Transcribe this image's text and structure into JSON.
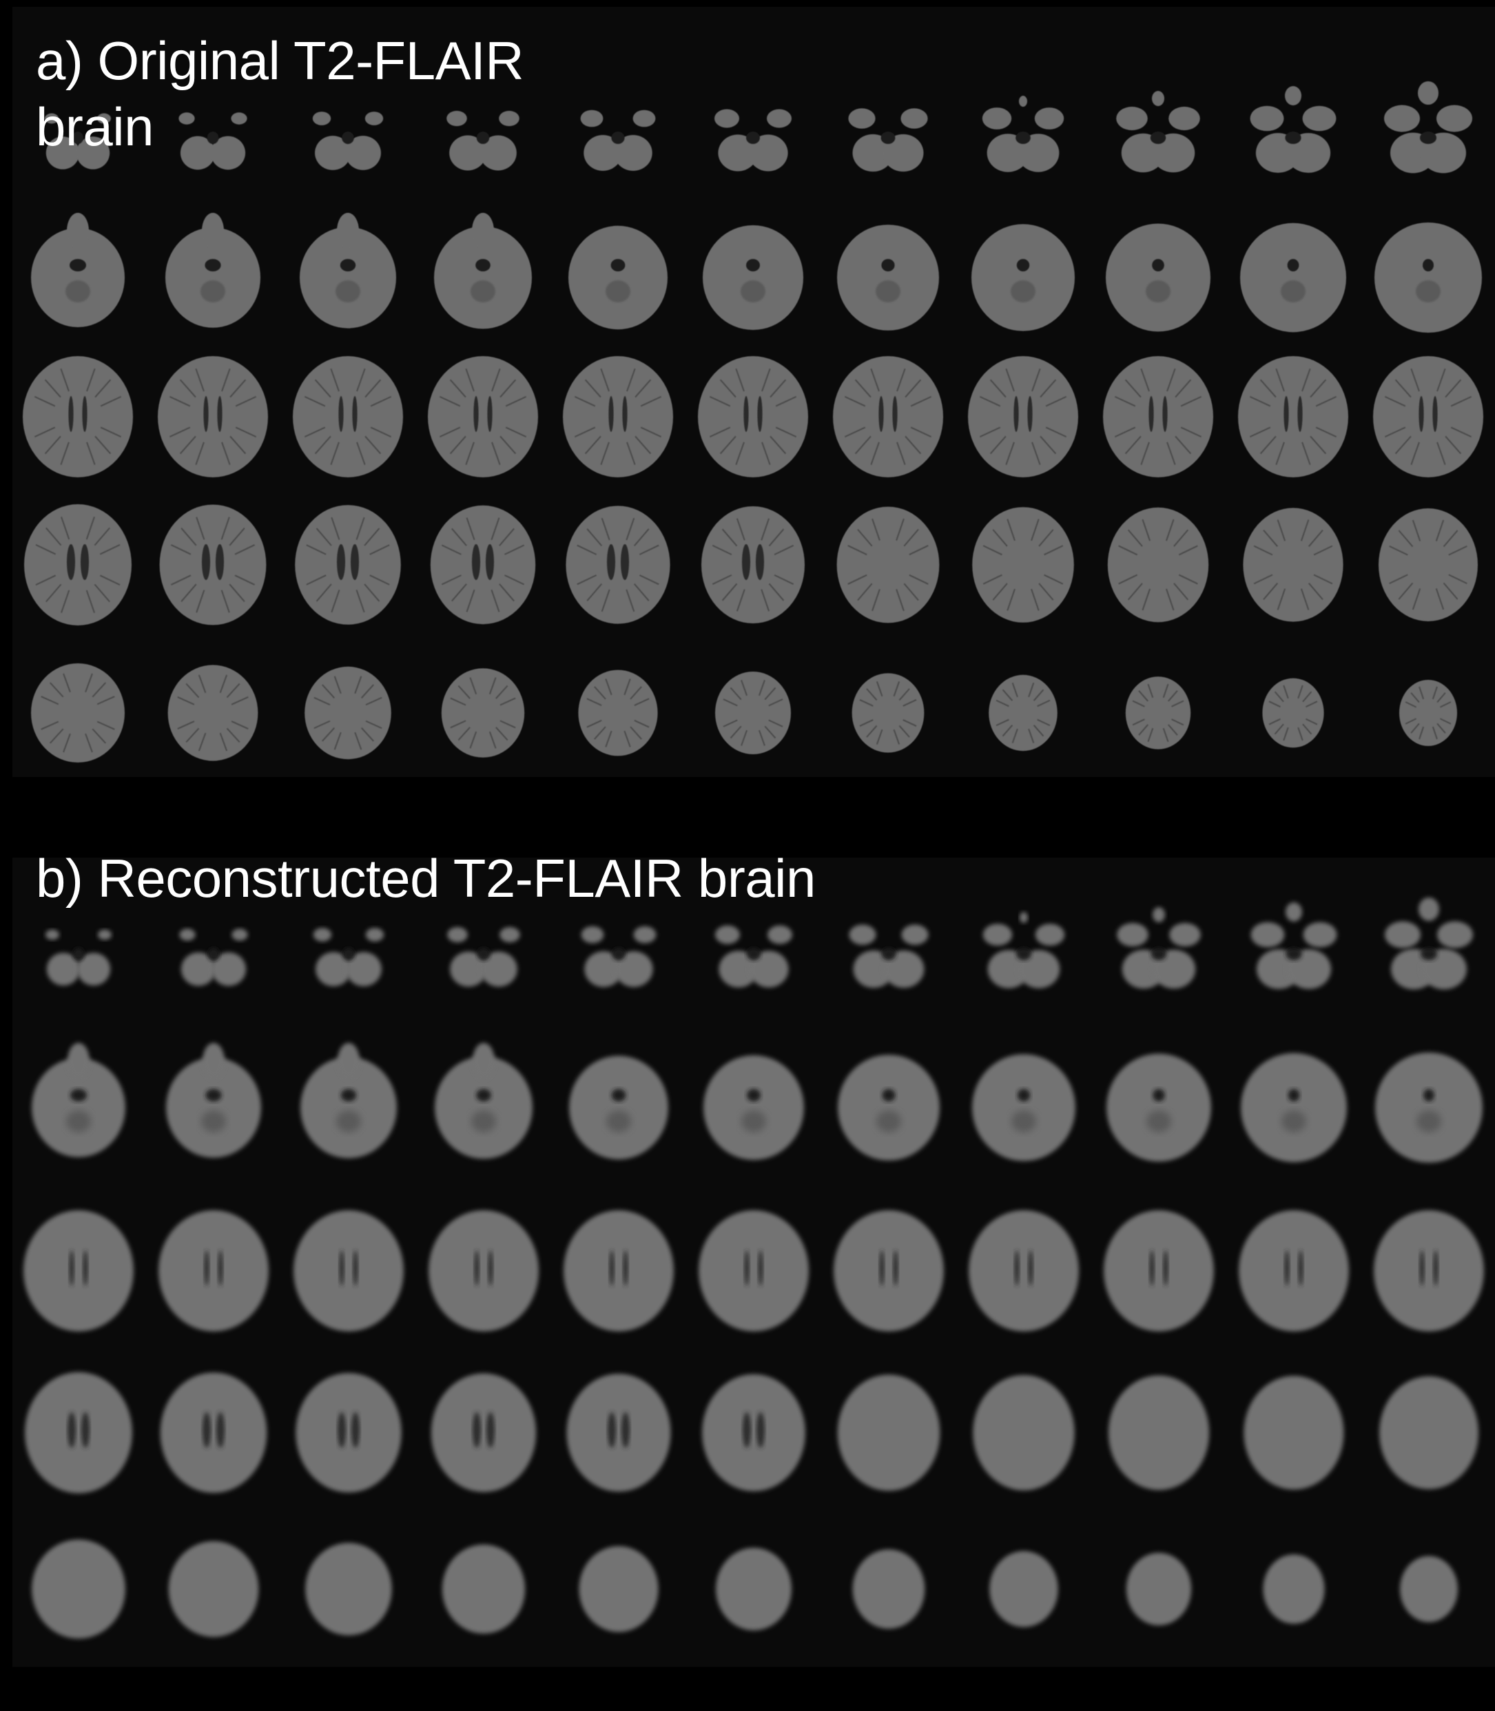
{
  "panels": [
    {
      "id": "a",
      "title": "a) Original T2-FLAIR brain",
      "rows": 5,
      "cols": 11,
      "style": "original"
    },
    {
      "id": "b",
      "title": "b) Reconstructed T2-FLAIR brain",
      "rows": 5,
      "cols": 11,
      "style": "reconstructed"
    }
  ],
  "colors": {
    "background": "#000000",
    "panel": "#0a0a0a",
    "tissue_original": "#6e6e6e",
    "tissue_reconstructed": "#737373",
    "title_text": "#ffffff"
  }
}
